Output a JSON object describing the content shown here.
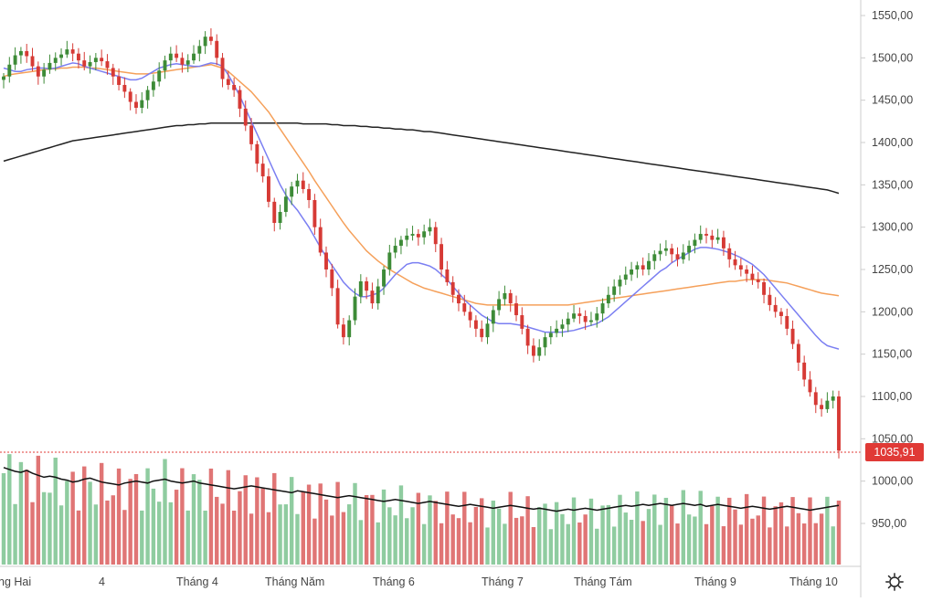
{
  "chart_data": {
    "type": "candlestick",
    "title": "",
    "ylim": [
      900,
      1565
    ],
    "y_ticks": [
      "1550,00",
      "1500,00",
      "1450,00",
      "1400,00",
      "1350,00",
      "1300,00",
      "1250,00",
      "1200,00",
      "1150,00",
      "1100,00",
      "1050,00",
      "1000,00",
      "950,00"
    ],
    "x_labels": [
      "ng Hai",
      "4",
      "Tháng 4",
      "Tháng Năm",
      "Tháng 6",
      "Tháng 7",
      "Tháng Tám",
      "Tháng 9",
      "Tháng 10"
    ],
    "last_price_label": "1035,91",
    "last_price": 1035.91,
    "grid": false,
    "colors": {
      "up": "#3d8b37",
      "down": "#d63a35",
      "vol_up": "#8fcca0",
      "vol_down": "#e07575",
      "ma_blue": "#7b7ff2",
      "ma_orange": "#f5a05a",
      "ma_black": "#222222",
      "vol_ma": "#111111"
    },
    "closes": [
      1478,
      1492,
      1503,
      1508,
      1502,
      1490,
      1478,
      1486,
      1494,
      1500,
      1504,
      1510,
      1505,
      1497,
      1490,
      1495,
      1500,
      1496,
      1488,
      1478,
      1468,
      1460,
      1448,
      1441,
      1450,
      1462,
      1472,
      1485,
      1497,
      1505,
      1500,
      1492,
      1497,
      1505,
      1514,
      1525,
      1520,
      1500,
      1475,
      1468,
      1462,
      1440,
      1420,
      1398,
      1375,
      1360,
      1330,
      1305,
      1318,
      1336,
      1348,
      1355,
      1345,
      1332,
      1300,
      1270,
      1250,
      1228,
      1185,
      1170,
      1190,
      1218,
      1236,
      1225,
      1210,
      1230,
      1250,
      1270,
      1278,
      1285,
      1290,
      1292,
      1288,
      1295,
      1300,
      1280,
      1250,
      1235,
      1220,
      1210,
      1200,
      1190,
      1180,
      1170,
      1186,
      1202,
      1215,
      1222,
      1210,
      1196,
      1180,
      1160,
      1148,
      1158,
      1170,
      1175,
      1180,
      1185,
      1192,
      1198,
      1195,
      1188,
      1190,
      1198,
      1210,
      1220,
      1230,
      1238,
      1244,
      1250,
      1255,
      1250,
      1260,
      1268,
      1272,
      1275,
      1268,
      1262,
      1270,
      1278,
      1285,
      1292,
      1290,
      1285,
      1288,
      1275,
      1262,
      1255,
      1250,
      1245,
      1238,
      1235,
      1220,
      1208,
      1200,
      1195,
      1180,
      1162,
      1140,
      1120,
      1105,
      1090,
      1085,
      1095,
      1100,
      1036
    ],
    "volumes": [
      1.0,
      0.98,
      0.96,
      0.95,
      0.97,
      0.94,
      0.92,
      0.9,
      0.91,
      0.9,
      0.88,
      0.87,
      0.85,
      0.86,
      0.88,
      0.89,
      0.87,
      0.85,
      0.84,
      0.83,
      0.82,
      0.84,
      0.85,
      0.86,
      0.85,
      0.84,
      0.86,
      0.87,
      0.88,
      0.86,
      0.85,
      0.84,
      0.85,
      0.86,
      0.84,
      0.83,
      0.82,
      0.81,
      0.8,
      0.79,
      0.78,
      0.79,
      0.8,
      0.81,
      0.8,
      0.79,
      0.78,
      0.77,
      0.76,
      0.75,
      0.74,
      0.76,
      0.75,
      0.74,
      0.73,
      0.72,
      0.71,
      0.7,
      0.69,
      0.7,
      0.71,
      0.7,
      0.69,
      0.68,
      0.67,
      0.66,
      0.65,
      0.66,
      0.67,
      0.66,
      0.65,
      0.64,
      0.63,
      0.64,
      0.65,
      0.64,
      0.63,
      0.62,
      0.61,
      0.6,
      0.61,
      0.62,
      0.61,
      0.6,
      0.59,
      0.58,
      0.59,
      0.6,
      0.61,
      0.6,
      0.59,
      0.58,
      0.57,
      0.58,
      0.57,
      0.56,
      0.55,
      0.56,
      0.57,
      0.56,
      0.57,
      0.58,
      0.57,
      0.56,
      0.57,
      0.58,
      0.59,
      0.6,
      0.61,
      0.6,
      0.61,
      0.62,
      0.61,
      0.62,
      0.63,
      0.62,
      0.61,
      0.62,
      0.63,
      0.62,
      0.61,
      0.62,
      0.6,
      0.61,
      0.62,
      0.61,
      0.6,
      0.59,
      0.58,
      0.59,
      0.6,
      0.59,
      0.58,
      0.57,
      0.58,
      0.59,
      0.6,
      0.59,
      0.58,
      0.57,
      0.56,
      0.57,
      0.58,
      0.59,
      0.6,
      0.61,
      0.63,
      0.64
    ],
    "ma_blue": [
      1488,
      1486,
      1484,
      1484,
      1486,
      1487,
      1488,
      1488,
      1487,
      1488,
      1490,
      1492,
      1494,
      1493,
      1490,
      1488,
      1486,
      1484,
      1482,
      1480,
      1478,
      1476,
      1474,
      1474,
      1476,
      1480,
      1484,
      1488,
      1490,
      1492,
      1493,
      1492,
      1491,
      1490,
      1490,
      1492,
      1494,
      1493,
      1490,
      1480,
      1468,
      1455,
      1440,
      1425,
      1410,
      1395,
      1380,
      1365,
      1350,
      1338,
      1328,
      1320,
      1310,
      1300,
      1288,
      1276,
      1265,
      1255,
      1245,
      1235,
      1228,
      1222,
      1218,
      1218,
      1220,
      1222,
      1228,
      1236,
      1244,
      1250,
      1256,
      1258,
      1258,
      1256,
      1254,
      1250,
      1244,
      1238,
      1230,
      1222,
      1214,
      1208,
      1202,
      1196,
      1192,
      1188,
      1186,
      1186,
      1186,
      1185,
      1184,
      1182,
      1180,
      1178,
      1176,
      1176,
      1176,
      1176,
      1177,
      1178,
      1180,
      1182,
      1184,
      1186,
      1190,
      1194,
      1200,
      1206,
      1212,
      1218,
      1224,
      1230,
      1236,
      1242,
      1248,
      1252,
      1258,
      1262,
      1266,
      1270,
      1274,
      1276,
      1276,
      1275,
      1274,
      1272,
      1270,
      1267,
      1264,
      1260,
      1256,
      1250,
      1244,
      1236,
      1228,
      1220,
      1212,
      1204,
      1196,
      1188,
      1180,
      1172,
      1165,
      1160,
      1158,
      1156
    ],
    "ma_orange": [
      1478,
      1480,
      1481,
      1482,
      1483,
      1484,
      1485,
      1486,
      1487,
      1487,
      1488,
      1488,
      1489,
      1489,
      1489,
      1488,
      1488,
      1487,
      1486,
      1485,
      1484,
      1483,
      1482,
      1481,
      1481,
      1481,
      1482,
      1483,
      1484,
      1485,
      1486,
      1487,
      1488,
      1489,
      1490,
      1491,
      1492,
      1490,
      1488,
      1484,
      1478,
      1472,
      1466,
      1460,
      1452,
      1444,
      1436,
      1426,
      1416,
      1406,
      1396,
      1386,
      1376,
      1366,
      1355,
      1345,
      1335,
      1325,
      1315,
      1305,
      1296,
      1288,
      1280,
      1272,
      1266,
      1260,
      1255,
      1250,
      1246,
      1242,
      1238,
      1234,
      1231,
      1228,
      1226,
      1224,
      1222,
      1220,
      1218,
      1216,
      1214,
      1212,
      1210,
      1209,
      1208,
      1208,
      1208,
      1208,
      1208,
      1208,
      1208,
      1208,
      1208,
      1208,
      1208,
      1208,
      1208,
      1208,
      1208,
      1209,
      1210,
      1211,
      1212,
      1213,
      1214,
      1215,
      1216,
      1217,
      1218,
      1219,
      1220,
      1221,
      1222,
      1223,
      1224,
      1225,
      1226,
      1227,
      1228,
      1229,
      1230,
      1231,
      1232,
      1233,
      1234,
      1235,
      1236,
      1236,
      1237,
      1238,
      1238,
      1238,
      1238,
      1237,
      1236,
      1235,
      1234,
      1232,
      1230,
      1228,
      1226,
      1224,
      1222,
      1221,
      1220,
      1219
    ],
    "ma_black": [
      1378,
      1380,
      1382,
      1384,
      1386,
      1388,
      1390,
      1392,
      1394,
      1396,
      1398,
      1400,
      1402,
      1403,
      1404,
      1405,
      1406,
      1407,
      1408,
      1409,
      1410,
      1411,
      1412,
      1413,
      1414,
      1415,
      1416,
      1417,
      1418,
      1419,
      1420,
      1420,
      1421,
      1421,
      1422,
      1422,
      1423,
      1423,
      1423,
      1423,
      1423,
      1423,
      1423,
      1423,
      1423,
      1423,
      1423,
      1423,
      1423,
      1423,
      1423,
      1423,
      1422,
      1422,
      1422,
      1422,
      1422,
      1421,
      1421,
      1420,
      1420,
      1420,
      1419,
      1419,
      1418,
      1418,
      1417,
      1417,
      1416,
      1416,
      1415,
      1415,
      1414,
      1413,
      1413,
      1412,
      1411,
      1410,
      1409,
      1408,
      1407,
      1406,
      1405,
      1404,
      1403,
      1402,
      1401,
      1400,
      1399,
      1398,
      1397,
      1396,
      1395,
      1394,
      1393,
      1392,
      1391,
      1390,
      1389,
      1388,
      1387,
      1386,
      1385,
      1384,
      1383,
      1382,
      1381,
      1380,
      1379,
      1378,
      1377,
      1376,
      1375,
      1374,
      1373,
      1372,
      1371,
      1370,
      1369,
      1368,
      1367,
      1366,
      1365,
      1364,
      1363,
      1362,
      1361,
      1360,
      1359,
      1358,
      1357,
      1356,
      1355,
      1354,
      1353,
      1352,
      1351,
      1350,
      1349,
      1348,
      1347,
      1346,
      1345,
      1344,
      1342,
      1340
    ]
  }
}
